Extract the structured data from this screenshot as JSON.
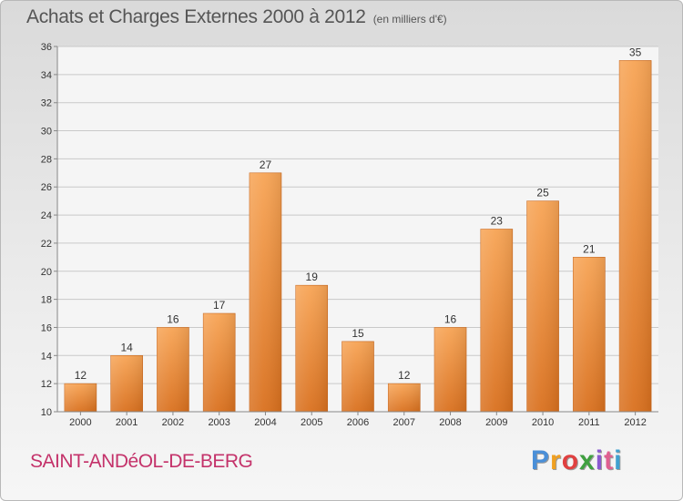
{
  "header": {
    "title": "Achats et Charges Externes 2000 à 2012",
    "subtitle": "(en milliers d'€)"
  },
  "footer": {
    "commune": "SAINT-ANDéOL-DE-BERG",
    "brand_letters": [
      "P",
      "r",
      "o",
      "x",
      "i",
      "t",
      "i"
    ],
    "brand_colors": [
      "#4a8fd8",
      "#f0a020",
      "#e04040",
      "#3fa040",
      "#8a5ad0",
      "#e06090",
      "#3fa0d0"
    ]
  },
  "colors": {
    "bar_top": "#f7a455",
    "bar_bottom": "#d9701e",
    "grid": "#c9c9c9",
    "axis_text": "#333333"
  },
  "chart_data": {
    "type": "bar",
    "title": "Achats et Charges Externes 2000 à 2012",
    "subtitle": "(en milliers d'€)",
    "categories": [
      "2000",
      "2001",
      "2002",
      "2003",
      "2004",
      "2005",
      "2006",
      "2007",
      "2008",
      "2009",
      "2010",
      "2011",
      "2012"
    ],
    "values": [
      12,
      14,
      16,
      17,
      27,
      19,
      15,
      12,
      16,
      23,
      25,
      21,
      35
    ],
    "ylim": [
      10,
      36
    ],
    "yticks": [
      10,
      12,
      14,
      16,
      18,
      20,
      22,
      24,
      26,
      28,
      30,
      32,
      34,
      36
    ],
    "grid": true,
    "legend": "none"
  }
}
